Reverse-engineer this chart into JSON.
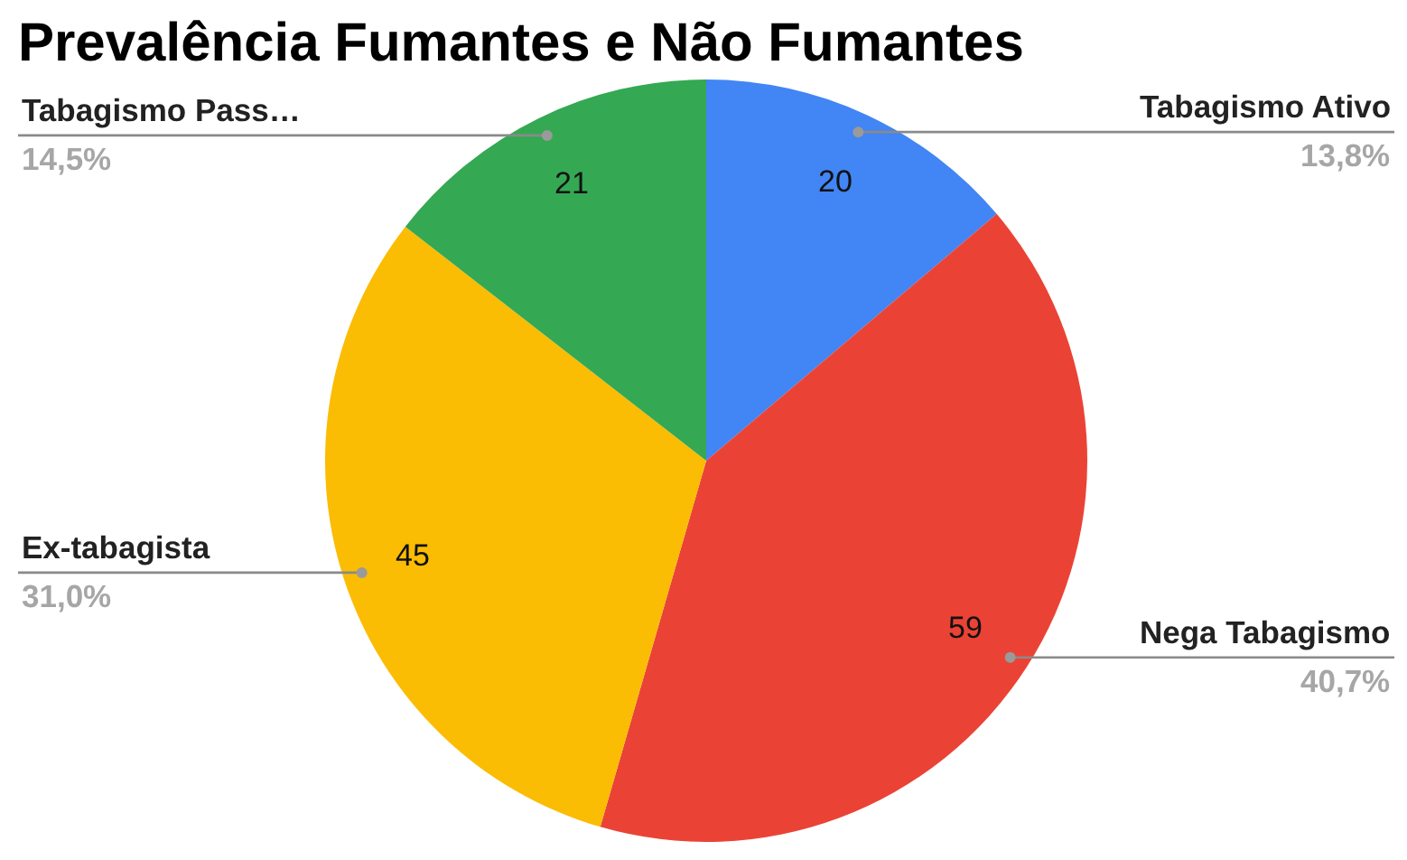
{
  "chart_data": {
    "type": "pie",
    "title": "Prevalência Fumantes e Não Fumantes",
    "categories": [
      "Tabagismo Ativo",
      "Nega Tabagismo",
      "Ex-tabagista",
      "Tabagismo Pass…"
    ],
    "values": [
      20,
      59,
      45,
      21
    ],
    "colors": [
      "#4285f4",
      "#ea4335",
      "#fbbc04",
      "#34a853"
    ],
    "data_labels": true,
    "annotations": [
      "13,8%",
      "40,7%",
      "31,0%",
      "14,5%"
    ]
  }
}
